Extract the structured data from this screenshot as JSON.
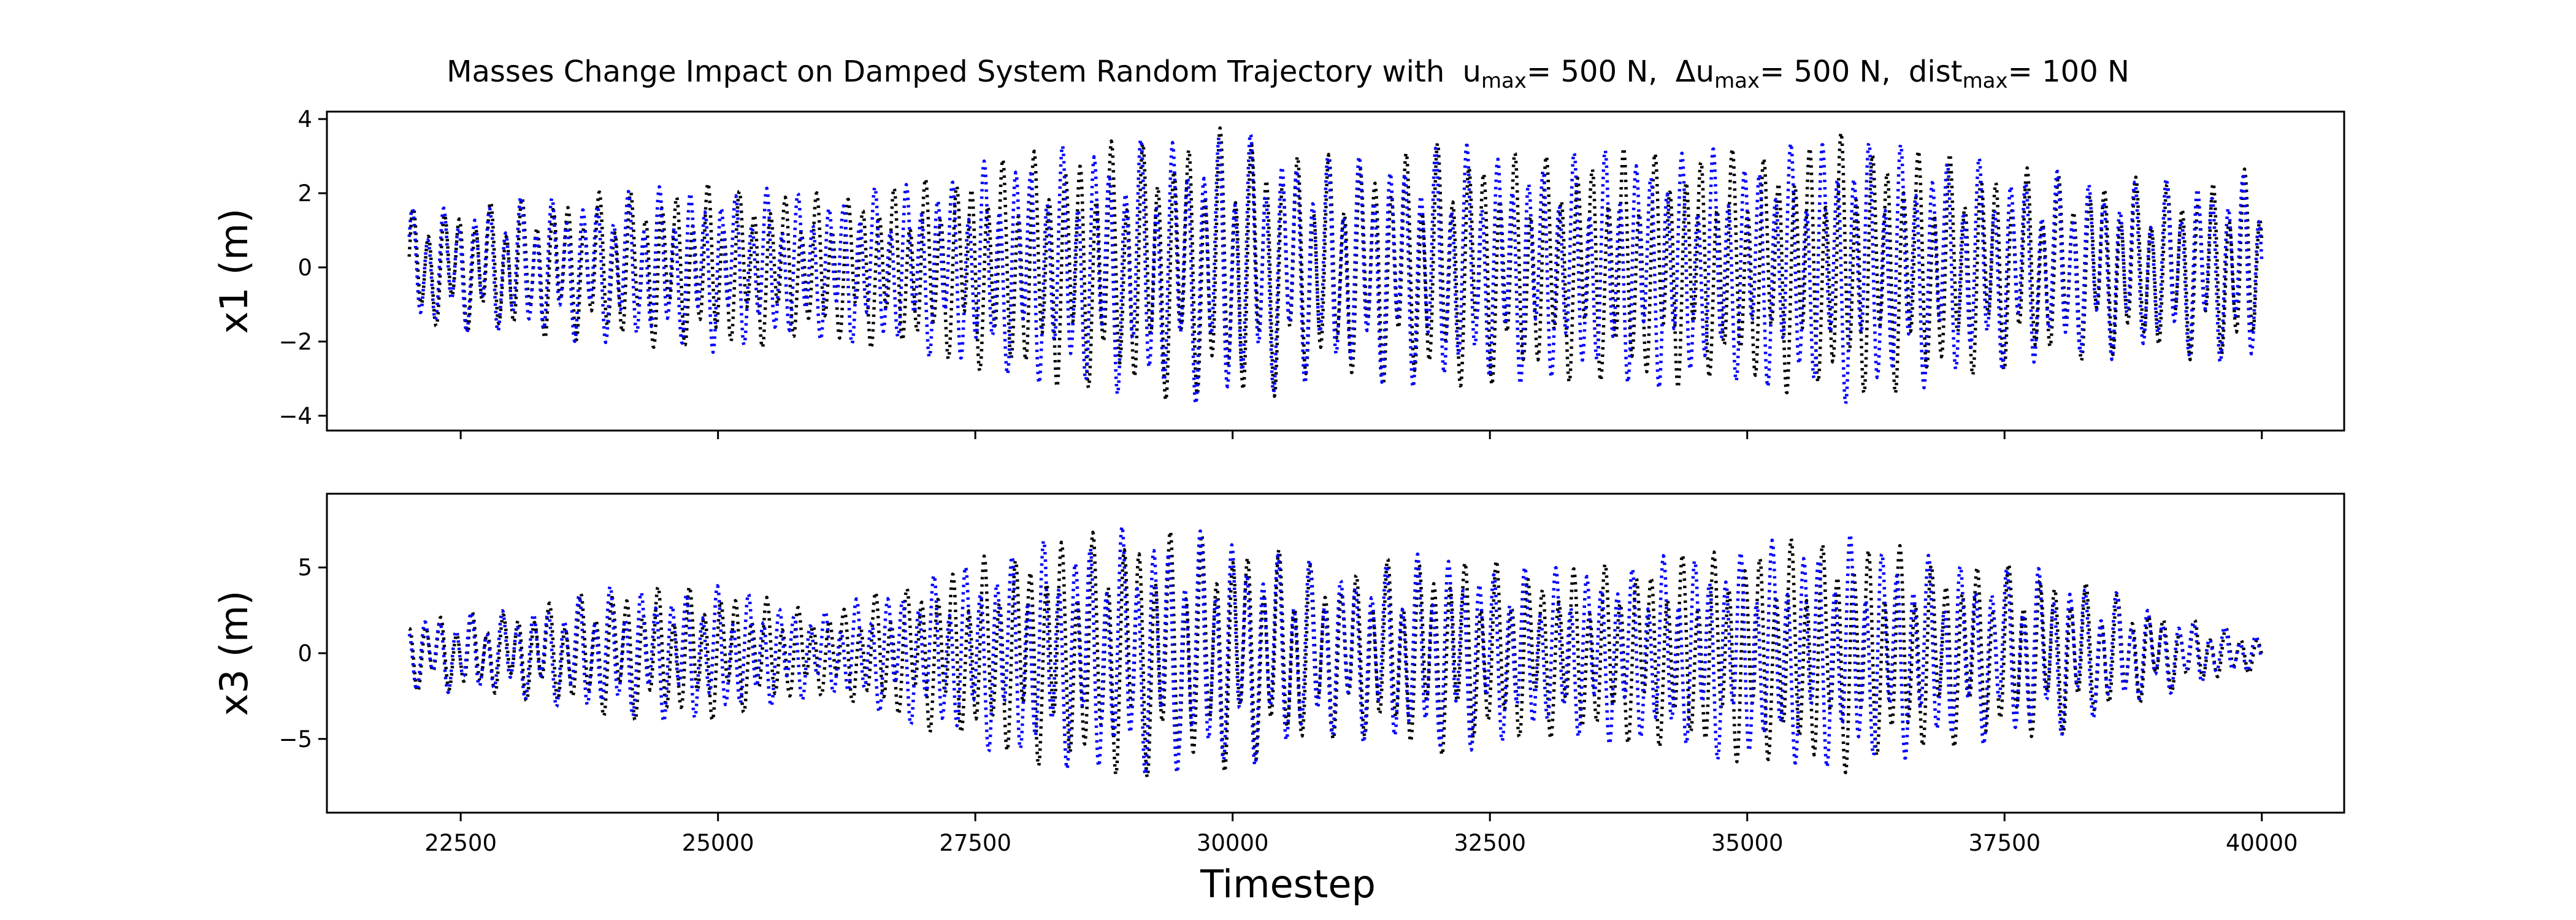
{
  "chart_data": {
    "type": "line",
    "title": {
      "base": "Masses Change Impact on Damped System Random Trajectory with",
      "parts": [
        {
          "text": "u",
          "sub": "max",
          "suffix": "= 500 N,"
        },
        {
          "text": "Δu",
          "sub": "max",
          "suffix": "= 500 N,"
        },
        {
          "text": "dist",
          "sub": "max",
          "suffix": "= 100 N"
        }
      ]
    },
    "xlabel": "Timestep",
    "xlim": [
      21200,
      40800
    ],
    "xticks": [
      22500,
      25000,
      27500,
      30000,
      32500,
      35000,
      37500,
      40000
    ],
    "xtick_labels": [
      "22500",
      "25000",
      "27500",
      "30000",
      "32500",
      "35000",
      "37500",
      "40000"
    ],
    "x_range": [
      22000,
      40000
    ],
    "line_style": "dotted",
    "colors": {
      "black_series": "#000000",
      "blue_series": "#0000ff"
    },
    "subplots": [
      {
        "ylabel": "x1 (m)",
        "ylim": [
          -4.4,
          4.2
        ],
        "yticks": [
          -4,
          -2,
          0,
          2,
          4
        ],
        "ytick_labels": [
          "−4",
          "−2",
          "0",
          "2",
          "4"
        ],
        "envelope": [
          [
            22000,
            1.6
          ],
          [
            23000,
            1.9
          ],
          [
            24000,
            2.1
          ],
          [
            25000,
            2.3
          ],
          [
            26000,
            2.0
          ],
          [
            27000,
            2.4
          ],
          [
            28000,
            3.2
          ],
          [
            29000,
            3.5
          ],
          [
            30000,
            3.8
          ],
          [
            31000,
            3.0
          ],
          [
            32000,
            3.4
          ],
          [
            33000,
            3.1
          ],
          [
            34000,
            3.3
          ],
          [
            35000,
            3.2
          ],
          [
            36000,
            3.7
          ],
          [
            37000,
            3.1
          ],
          [
            38000,
            2.6
          ],
          [
            39000,
            2.4
          ],
          [
            40000,
            2.7
          ]
        ],
        "phase": 0.0
      },
      {
        "ylabel": "x3 (m)",
        "ylim": [
          -9.3,
          9.3
        ],
        "yticks": [
          -5,
          0,
          5
        ],
        "ytick_labels": [
          "−5",
          "0",
          "5"
        ],
        "envelope": [
          [
            22000,
            2.2
          ],
          [
            23000,
            2.6
          ],
          [
            24000,
            4.0
          ],
          [
            25000,
            4.0
          ],
          [
            26000,
            2.5
          ],
          [
            27000,
            4.5
          ],
          [
            28000,
            6.5
          ],
          [
            29000,
            7.5
          ],
          [
            30000,
            7.0
          ],
          [
            31000,
            5.0
          ],
          [
            32000,
            6.0
          ],
          [
            33000,
            5.0
          ],
          [
            34000,
            5.5
          ],
          [
            35000,
            6.5
          ],
          [
            36000,
            7.0
          ],
          [
            37000,
            5.5
          ],
          [
            38000,
            5.0
          ],
          [
            39000,
            2.5
          ],
          [
            40000,
            1.0
          ]
        ],
        "phase": 1.3
      }
    ],
    "series": [
      {
        "name": "",
        "color_key": "black_series"
      },
      {
        "name": "",
        "color_key": "blue_series"
      }
    ]
  }
}
